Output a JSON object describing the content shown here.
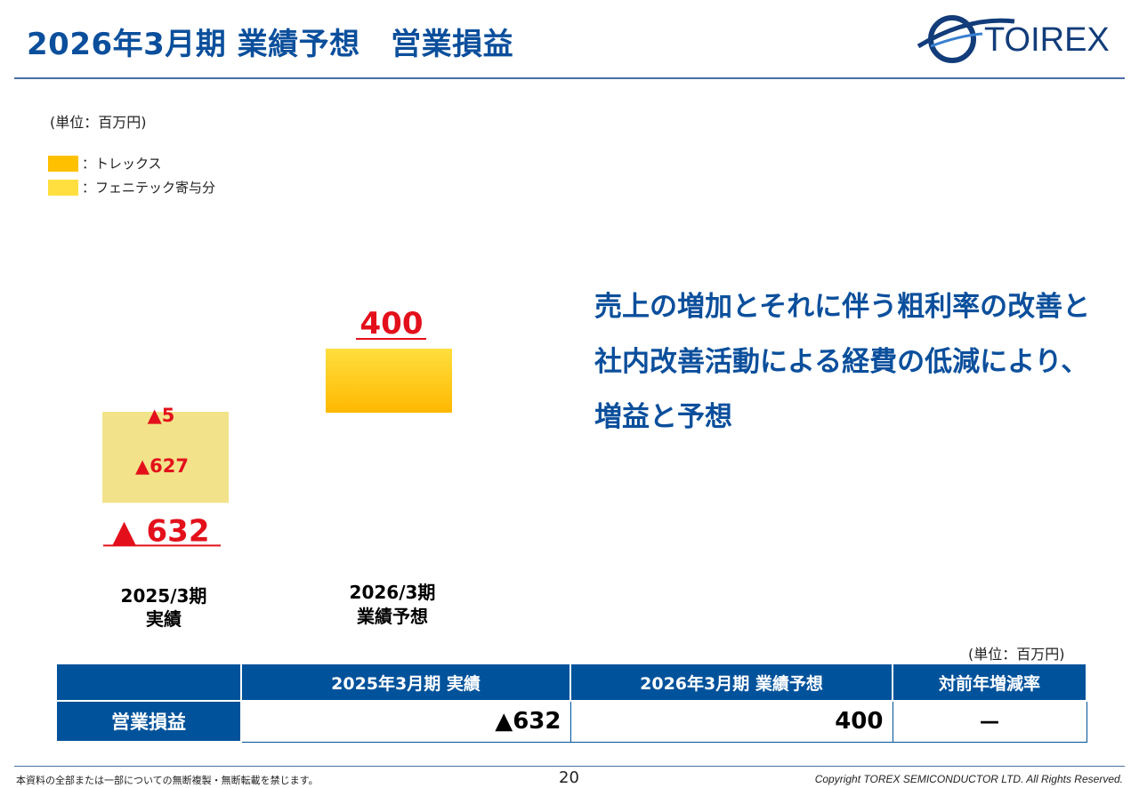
{
  "header": {
    "title": "2026年3月期 業績予想　営業損益",
    "logo_text": "TOIREX"
  },
  "unit_label": "(単位：百万円)",
  "legend": [
    {
      "label": "：トレックス",
      "color": "#ffc000"
    },
    {
      "label": "：フェニテック寄与分",
      "color": "#ffdf3f"
    }
  ],
  "chart_data": {
    "type": "bar",
    "categories": [
      {
        "line1": "2025/3期",
        "line2": "実績"
      },
      {
        "line1": "2026/3期",
        "line2": "業績予想"
      }
    ],
    "series": [
      {
        "name": "トレックス",
        "values": [
          -627,
          400
        ],
        "color": "#ffc000"
      },
      {
        "name": "フェニテック寄与分",
        "values": [
          -5,
          0
        ],
        "color": "#ffdf3f"
      }
    ],
    "totals": [
      -632,
      400
    ],
    "total_labels": [
      "▲ 632",
      "400"
    ],
    "segment_labels": [
      "▲5",
      "▲627"
    ],
    "negative_fill": "#f2e38a",
    "label_color": "#e3101b"
  },
  "message": "売上の増加とそれに伴う粗利率の改善と社内改善活動による経費の低減により、増益と予想",
  "table": {
    "unit": "(単位：百万円)",
    "headers": [
      "",
      "2025年3月期  実績",
      "2026年3月期  業績予想",
      "対前年増減率"
    ],
    "rows": [
      {
        "label": "営業損益",
        "values": [
          "▲632",
          "400",
          "－"
        ]
      }
    ]
  },
  "footer": {
    "left": "本資料の全部または一部についての無断複製・無断転載を禁じます。",
    "page": "20",
    "right": "Copyright TOREX SEMICONDUCTOR LTD.  All Rights Reserved."
  },
  "colors": {
    "brand": "#0b4f9c",
    "header_fill": "#00529b",
    "accent_red": "#e3101b"
  }
}
